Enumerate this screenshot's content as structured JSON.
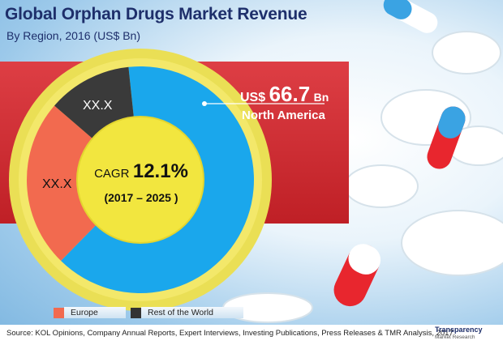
{
  "header": {
    "title": "Global Orphan Drugs Market Revenue",
    "subtitle": "By Region, 2016 (US$ Bn)"
  },
  "callout": {
    "currency": "US$",
    "value": "66.7",
    "unit": "Bn",
    "region": "North America"
  },
  "center": {
    "cagr_label": "CAGR",
    "cagr_value": "12.1%",
    "period": "(2017 – 2025 )"
  },
  "legend": {
    "items": [
      {
        "label": "Europe",
        "color": "#f26a4f"
      },
      {
        "label": "Rest of the World",
        "color": "#333333"
      }
    ]
  },
  "footer": {
    "source": "Source: KOL Opinions, Company Annual Reports, Expert Interviews, Investing Publications, Press Releases & TMR Analysis, 2017",
    "brand_name": "Transparency",
    "brand_sub": "Market Research"
  },
  "colors": {
    "north_america": "#1aa7ec",
    "europe": "#f26a4f",
    "rest_of_world": "#3a3a3a",
    "ring": "#f0e04a",
    "band": "#d9242b",
    "title": "#1e2f6b"
  },
  "chart_data": {
    "type": "pie",
    "title": "Global Orphan Drugs Market Revenue",
    "subtitle": "By Region, 2016 (US$ Bn)",
    "unit": "US$ Bn",
    "slices": [
      {
        "name": "North America",
        "label": "US$ 66.7 Bn",
        "share": 0.64,
        "color": "#1aa7ec"
      },
      {
        "name": "Europe",
        "label": "XX.X",
        "share": 0.24,
        "color": "#f26a4f"
      },
      {
        "name": "Rest of the World",
        "label": "XX.X",
        "share": 0.12,
        "color": "#3a3a3a"
      }
    ],
    "annotation": "CAGR 12.1% (2017 – 2025 )",
    "legend": "bottom-left"
  }
}
